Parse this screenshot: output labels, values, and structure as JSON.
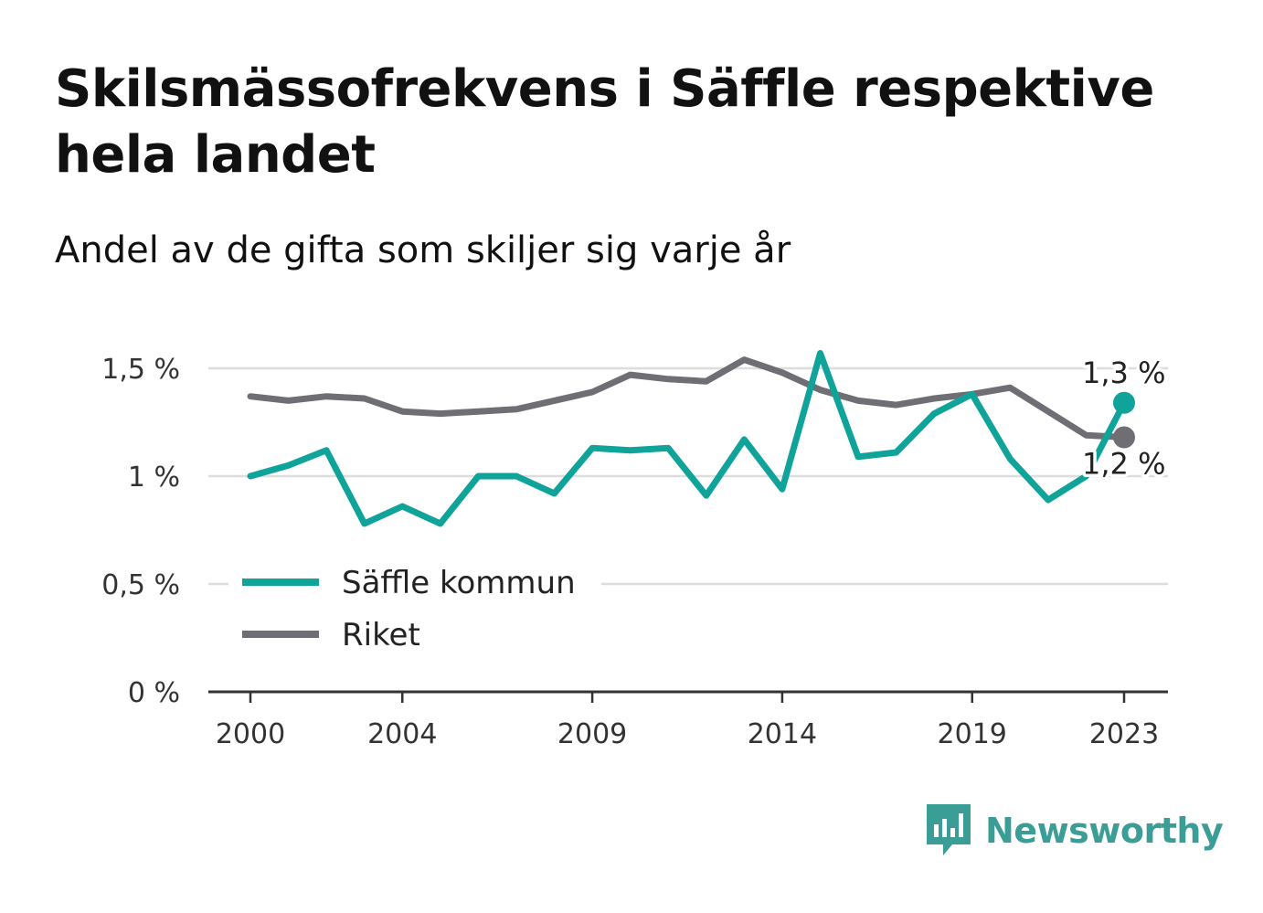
{
  "title": "Skilsmässofrekvens i Säffle respektive hela landet",
  "subtitle": "Andel av de gifta som skiljer sig varje år",
  "brand": "Newsworthy",
  "colors": {
    "saffle": "#0fa39a",
    "riket": "#6f6e75",
    "brand": "#3a9d96"
  },
  "chart_data": {
    "type": "line",
    "x": [
      2000,
      2001,
      2002,
      2003,
      2004,
      2005,
      2006,
      2007,
      2008,
      2009,
      2010,
      2011,
      2012,
      2013,
      2014,
      2015,
      2016,
      2017,
      2018,
      2019,
      2020,
      2021,
      2022,
      2023
    ],
    "x_ticks": [
      2000,
      2004,
      2009,
      2014,
      2019,
      2023
    ],
    "y_ticks": [
      {
        "value": 0,
        "label": "0 %"
      },
      {
        "value": 0.5,
        "label": "0,5 %"
      },
      {
        "value": 1,
        "label": "1 %"
      },
      {
        "value": 1.5,
        "label": "1,5 %"
      }
    ],
    "ylim": [
      0,
      1.5
    ],
    "grid": true,
    "legend_position": "bottom-left",
    "series": [
      {
        "name": "Säffle kommun",
        "color": "#0fa39a",
        "values": [
          1.0,
          1.05,
          1.12,
          0.78,
          0.86,
          0.78,
          1.0,
          1.0,
          0.92,
          1.13,
          1.12,
          1.13,
          0.91,
          1.17,
          0.94,
          1.57,
          1.09,
          1.11,
          1.29,
          1.38,
          1.08,
          0.89,
          1.0,
          1.34
        ],
        "end_label": "1,3 %"
      },
      {
        "name": "Riket",
        "color": "#6f6e75",
        "values": [
          1.37,
          1.35,
          1.37,
          1.36,
          1.3,
          1.29,
          1.3,
          1.31,
          1.35,
          1.39,
          1.47,
          1.45,
          1.44,
          1.54,
          1.48,
          1.4,
          1.35,
          1.33,
          1.36,
          1.38,
          1.41,
          1.3,
          1.19,
          1.18
        ],
        "end_label": "1,2 %"
      }
    ]
  }
}
